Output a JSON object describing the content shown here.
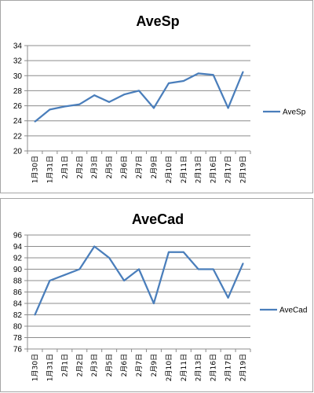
{
  "chart_data": [
    {
      "type": "line",
      "title": "AveSp",
      "categories": [
        "1月30日",
        "1月31日",
        "2月1日",
        "2月2日",
        "2月3日",
        "2月5日",
        "2月6日",
        "2月7日",
        "2月9日",
        "2月10日",
        "2月11日",
        "2月13日",
        "2月16日",
        "2月17日",
        "2月19日"
      ],
      "series": [
        {
          "name": "AveSp",
          "color": "#4a7ebb",
          "values": [
            23.9,
            25.5,
            25.9,
            26.2,
            27.4,
            26.5,
            27.5,
            28.0,
            25.7,
            29.0,
            29.3,
            30.3,
            30.1,
            25.7,
            30.5
          ]
        }
      ],
      "ylim": [
        20,
        34
      ],
      "ystep": 2,
      "yticks": [
        "20",
        "22",
        "24",
        "26",
        "28",
        "30",
        "32",
        "34"
      ],
      "grid": true,
      "legend": "right"
    },
    {
      "type": "line",
      "title": "AveCad",
      "categories": [
        "1月30日",
        "1月31日",
        "2月1日",
        "2月2日",
        "2月3日",
        "2月5日",
        "2月6日",
        "2月7日",
        "2月9日",
        "2月10日",
        "2月11日",
        "2月13日",
        "2月16日",
        "2月17日",
        "2月19日"
      ],
      "series": [
        {
          "name": "AveCad",
          "color": "#4a7ebb",
          "values": [
            82,
            88,
            89,
            90,
            94,
            92,
            88,
            90,
            84,
            93,
            93,
            90,
            90,
            85,
            91
          ]
        }
      ],
      "ylim": [
        76,
        96
      ],
      "ystep": 2,
      "yticks": [
        "76",
        "78",
        "80",
        "82",
        "84",
        "86",
        "88",
        "90",
        "92",
        "94",
        "96"
      ],
      "grid": true,
      "legend": "right"
    }
  ]
}
